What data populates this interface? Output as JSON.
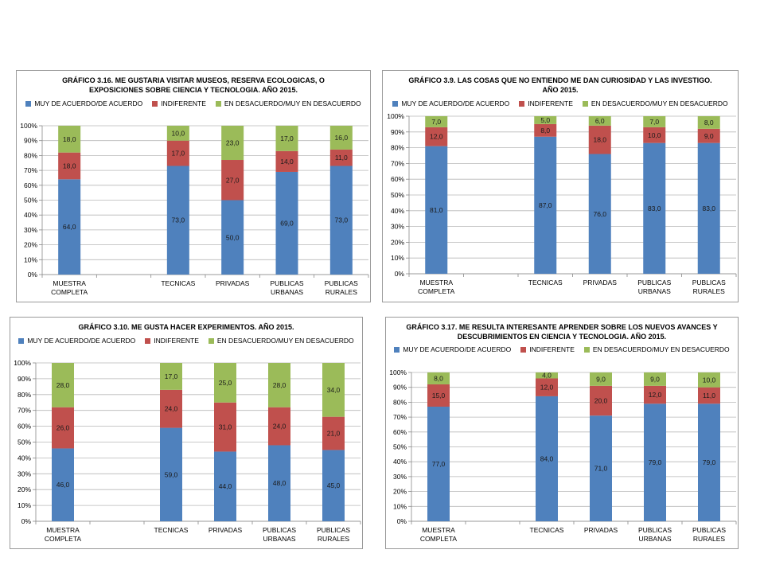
{
  "colors": {
    "agree": "#4f81bd",
    "indifferent": "#c0504d",
    "disagree": "#9bbb59",
    "grid": "#b7b7b7"
  },
  "legend": {
    "agree": "MUY DE ACUERDO/DE ACUERDO",
    "indifferent": "INDIFERENTE",
    "disagree_a": "EN DESACUERDO/MUY EN DESACUERDO",
    "disagree_b": "EN DESACUERDO/MUY EN DESACUERDO"
  },
  "chart_data": [
    {
      "type": "bar",
      "stacked": true,
      "title": "GRÁFICO 3.16. ME GUSTARIA VISITAR MUSEOS, RESERVA ECOLOGICAS, O\nEXPOSICIONES SOBRE CIENCIA Y TECNOLOGIA. AÑO 2015.",
      "categories": [
        "MUESTRA\nCOMPLETA",
        "",
        "TECNICAS",
        "PRIVADAS",
        "PUBLICAS\nURBANAS",
        "PUBLICAS\nRURALES"
      ],
      "series": [
        {
          "name": "MUY DE ACUERDO/DE ACUERDO",
          "values": [
            64.0,
            null,
            73.0,
            50.0,
            69.0,
            73.0
          ],
          "labels": [
            "64,0",
            "",
            "73,0",
            "50,0",
            "69,0",
            "73,0"
          ]
        },
        {
          "name": "INDIFERENTE",
          "values": [
            18.0,
            null,
            17.0,
            27.0,
            14.0,
            11.0
          ],
          "labels": [
            "18,0",
            "",
            "17,0",
            "27,0",
            "14,0",
            "11,0"
          ]
        },
        {
          "name": "EN DESACUERDO/MUY EN DESACUERDO",
          "values": [
            18.0,
            null,
            10.0,
            23.0,
            17.0,
            16.0
          ],
          "labels": [
            "18,0",
            "",
            "10,0",
            "23,0",
            "17,0",
            "16,0"
          ]
        }
      ],
      "ylim": [
        0,
        100
      ],
      "yticks": [
        "0%",
        "10%",
        "20%",
        "30%",
        "40%",
        "50%",
        "60%",
        "70%",
        "80%",
        "90%",
        "100%"
      ],
      "grid": true,
      "legend_position": "top"
    },
    {
      "type": "bar",
      "stacked": true,
      "title": "GRÁFICO 3.9. LAS COSAS QUE NO ENTIENDO ME DAN CURIOSIDAD Y LAS INVESTIGO.\nAÑO 2015.",
      "categories": [
        "MUESTRA\nCOMPLETA",
        "",
        "TECNICAS",
        "PRIVADAS",
        "PUBLICAS\nURBANAS",
        "PUBLICAS\nRURALES"
      ],
      "series": [
        {
          "name": "MUY DE ACUERDO/DE ACUERDO",
          "values": [
            81.0,
            null,
            87.0,
            76.0,
            83.0,
            83.0
          ],
          "labels": [
            "81,0",
            "",
            "87,0",
            "76,0",
            "83,0",
            "83,0"
          ]
        },
        {
          "name": "INDIFERENTE",
          "values": [
            12.0,
            null,
            8.0,
            18.0,
            10.0,
            9.0
          ],
          "labels": [
            "12,0",
            "",
            "8,0",
            "18,0",
            "10,0",
            "9,0"
          ]
        },
        {
          "name": "EN DESACUERDO/MUY EN DESACUERDO",
          "values": [
            7.0,
            null,
            5.0,
            6.0,
            7.0,
            8.0
          ],
          "labels": [
            "7,0",
            "",
            "5,0",
            "6,0",
            "7,0",
            "8,0"
          ]
        }
      ],
      "ylim": [
        0,
        100
      ],
      "yticks": [
        "0%",
        "10%",
        "20%",
        "30%",
        "40%",
        "50%",
        "60%",
        "70%",
        "80%",
        "90%",
        "100%"
      ],
      "grid": true,
      "legend_position": "top"
    },
    {
      "type": "bar",
      "stacked": true,
      "title": "GRÁFICO 3.10. ME GUSTA HACER EXPERIMENTOS. AÑO 2015.",
      "categories": [
        "MUESTRA\nCOMPLETA",
        "",
        "TECNICAS",
        "PRIVADAS",
        "PUBLICAS\nURBANAS",
        "PUBLICAS\nRURALES"
      ],
      "series": [
        {
          "name": "MUY DE ACUERDO/DE ACUERDO",
          "values": [
            46.0,
            null,
            59.0,
            44.0,
            48.0,
            45.0
          ],
          "labels": [
            "46,0",
            "",
            "59,0",
            "44,0",
            "48,0",
            "45,0"
          ]
        },
        {
          "name": "INDIFERENTE",
          "values": [
            26.0,
            null,
            24.0,
            31.0,
            24.0,
            21.0
          ],
          "labels": [
            "26,0",
            "",
            "24,0",
            "31,0",
            "24,0",
            "21,0"
          ]
        },
        {
          "name": "EN DESACUERDO/MUY EN DESACUERDO",
          "values": [
            28.0,
            null,
            17.0,
            25.0,
            28.0,
            34.0
          ],
          "labels": [
            "28,0",
            "",
            "17,0",
            "25,0",
            "28,0",
            "34,0"
          ]
        }
      ],
      "ylim": [
        0,
        100
      ],
      "yticks": [
        "0%",
        "10%",
        "20%",
        "30%",
        "40%",
        "50%",
        "60%",
        "70%",
        "80%",
        "90%",
        "100%"
      ],
      "grid": true,
      "legend_position": "top"
    },
    {
      "type": "bar",
      "stacked": true,
      "title": "GRÁFICO 3.17. ME RESULTA INTERESANTE APRENDER SOBRE LOS NUEVOS AVANCES Y\nDESCUBRIMIENTOS EN CIENCIA Y TECNOLOGIA. AÑO 2015.",
      "categories": [
        "MUESTRA\nCOMPLETA",
        "",
        "TECNICAS",
        "PRIVADAS",
        "PUBLICAS\nURBANAS",
        "PUBLICAS\nRURALES"
      ],
      "series": [
        {
          "name": "MUY DE ACUERDO/DE ACUERDO",
          "values": [
            77.0,
            null,
            84.0,
            71.0,
            79.0,
            79.0
          ],
          "labels": [
            "77,0",
            "",
            "84,0",
            "71,0",
            "79,0",
            "79,0"
          ]
        },
        {
          "name": "INDIFERENTE",
          "values": [
            15.0,
            null,
            12.0,
            20.0,
            12.0,
            11.0
          ],
          "labels": [
            "15,0",
            "",
            "12,0",
            "20,0",
            "12,0",
            "11,0"
          ]
        },
        {
          "name": "EN DESACUERDO/MUY EN DESACUERDO",
          "values": [
            8.0,
            null,
            4.0,
            9.0,
            9.0,
            10.0
          ],
          "labels": [
            "8,0",
            "",
            "4,0",
            "9,0",
            "9,0",
            "10,0"
          ]
        }
      ],
      "ylim": [
        0,
        100
      ],
      "yticks": [
        "0%",
        "10%",
        "20%",
        "30%",
        "40%",
        "50%",
        "60%",
        "70%",
        "80%",
        "90%",
        "100%"
      ],
      "grid": true,
      "legend_position": "top"
    }
  ]
}
